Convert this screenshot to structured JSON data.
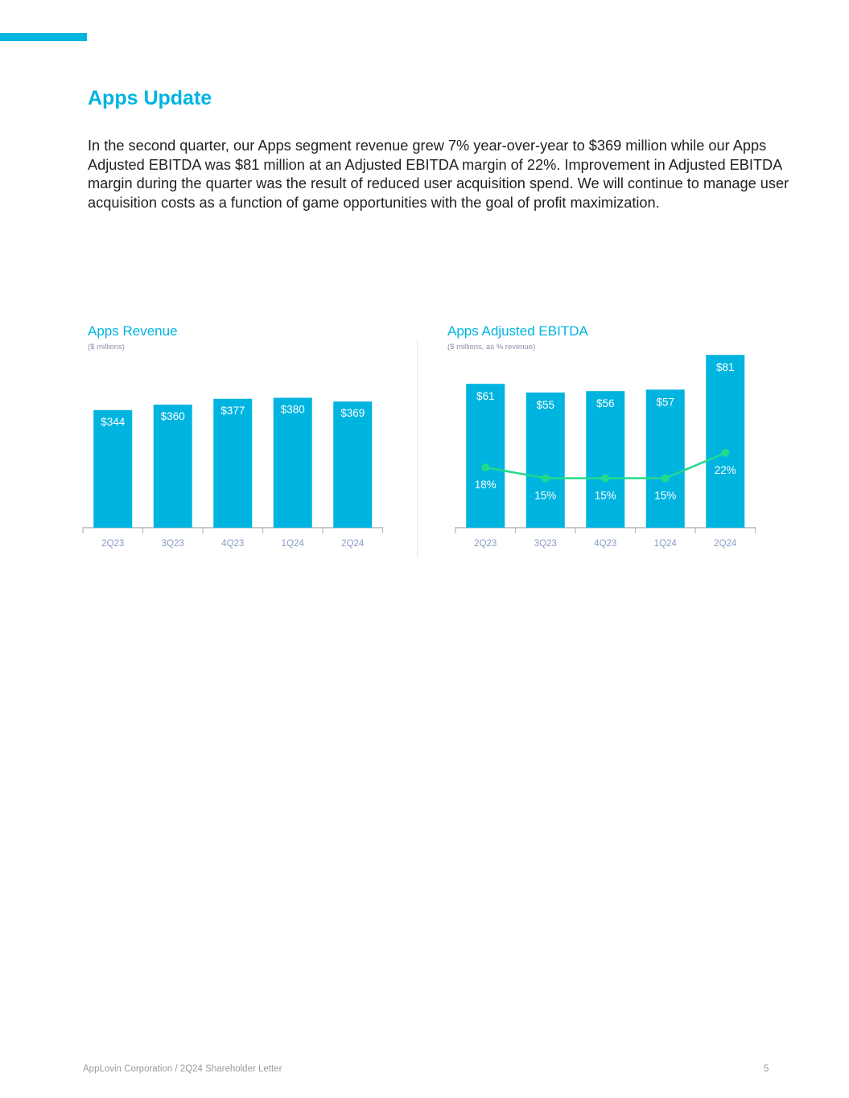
{
  "colors": {
    "accent": "#00b4e0",
    "bar": "#00b4e0",
    "margin_line": "#22d98c",
    "axis": "#b5b8c0",
    "tick_label": "#8a9ac8"
  },
  "header": {
    "title": "Apps Update"
  },
  "body": {
    "paragraph": "In the second quarter, our Apps segment revenue grew 7% year-over-year to $369 million while our Apps Adjusted EBITDA was $81 million at an Adjusted EBITDA margin of 22%. Improvement in Adjusted EBITDA margin during the quarter was the result of reduced user acquisition spend. We will continue to manage user acquisition costs as a function of game opportunities with the goal of profit maximization."
  },
  "chart_data": [
    {
      "type": "bar",
      "title": "Apps Revenue",
      "subtitle": "($ millions)",
      "categories": [
        "2Q23",
        "3Q23",
        "4Q23",
        "1Q24",
        "2Q24"
      ],
      "values": [
        344,
        360,
        377,
        380,
        369
      ],
      "data_labels": [
        "$344",
        "$360",
        "$377",
        "$380",
        "$369"
      ],
      "grid": false
    },
    {
      "type": "bar",
      "title": "Apps Adjusted EBITDA",
      "subtitle": "($ millions, as % revenue)",
      "categories": [
        "2Q23",
        "3Q23",
        "4Q23",
        "1Q24",
        "2Q24"
      ],
      "values": [
        61,
        55,
        56,
        57,
        81
      ],
      "data_labels": [
        "$61",
        "$55",
        "$56",
        "$57",
        "$81"
      ],
      "line_series": {
        "type": "line",
        "values": [
          18,
          15,
          15,
          15,
          22
        ],
        "data_labels": [
          "18%",
          "15%",
          "15%",
          "15%",
          "22%"
        ]
      },
      "grid": false
    }
  ],
  "footer": {
    "text": "AppLovin Corporation  / 2Q24 Shareholder Letter",
    "page_number": "5"
  }
}
